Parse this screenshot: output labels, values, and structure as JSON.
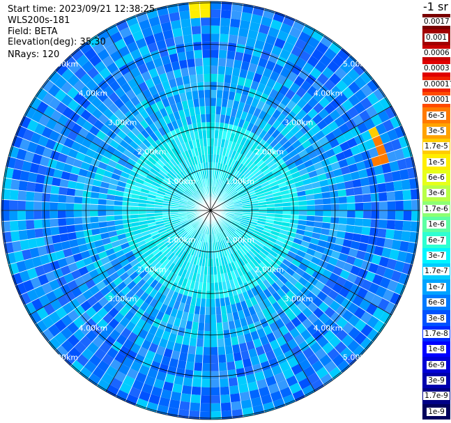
{
  "header": {
    "start_time": "Start time: 2023/09/21 12:38:25",
    "device": "WLS200s-181",
    "field": "Field: BETA",
    "elevation": "Elevation(deg): 35.30",
    "nrays": "NRays: 120"
  },
  "colorbar": {
    "unit": "-1 sr",
    "labels": [
      "0.0017",
      "0.001",
      "0.0006",
      "0.0003",
      "0.00017",
      "0.0001",
      "6e-5",
      "3e-5",
      "1.7e-5",
      "1e-5",
      "6e-6",
      "3e-6",
      "1.7e-6",
      "1e-6",
      "6e-7",
      "3e-7",
      "1.7e-7",
      "1e-7",
      "6e-8",
      "3e-8",
      "1.7e-8",
      "1e-8",
      "6e-9",
      "3e-9",
      "1.7e-9",
      "1e-9"
    ],
    "colors": [
      "#7a0000",
      "#a30000",
      "#c80000",
      "#e00000",
      "#f02000",
      "#ff4a00",
      "#ff7a00",
      "#ffa300",
      "#ffcc00",
      "#ffee00",
      "#e6ff1a",
      "#b8ff47",
      "#8cff73",
      "#5cffa3",
      "#2effd1",
      "#00f5ff",
      "#00ccff",
      "#00a3ff",
      "#007aff",
      "#0052ff",
      "#0029ff",
      "#0000ff",
      "#0000d6",
      "#0000ad",
      "#000085",
      "#00005c"
    ]
  },
  "rings": [
    {
      "label": "1.00km"
    },
    {
      "label": "2.00km"
    },
    {
      "label": "3.00km"
    },
    {
      "label": "4.00km"
    },
    {
      "label": "5.00km"
    }
  ],
  "chart_data": {
    "type": "heatmap",
    "projection": "polar PPI",
    "range_rings_km": [
      1,
      2,
      3,
      4,
      5
    ],
    "azimuth_spokes": 12,
    "n_rays": 120,
    "field": "BETA",
    "colorscale": "log, 1e-9 to 0.0017"
  }
}
